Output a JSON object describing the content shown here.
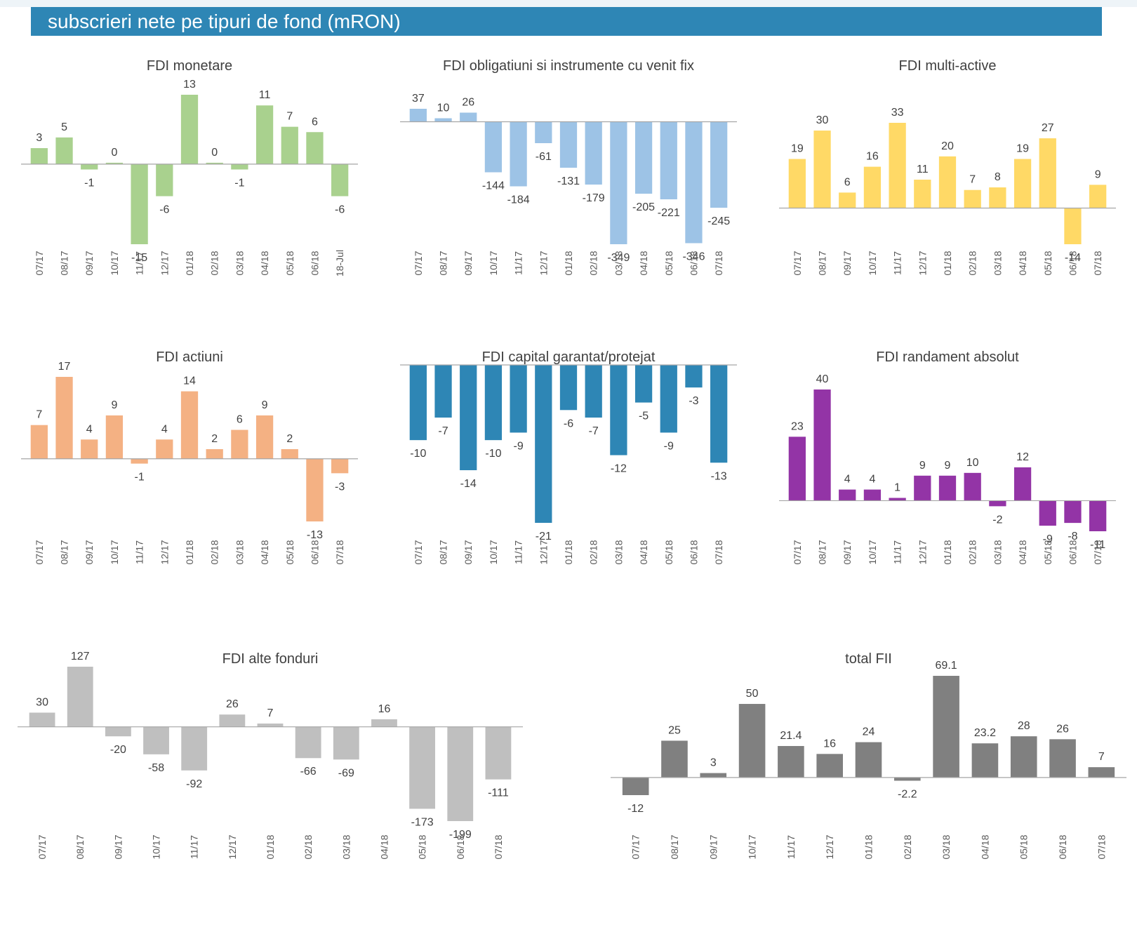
{
  "header": {
    "title": "subscrieri nete pe tipuri de fond (mRON)"
  },
  "chart_data": [
    {
      "type": "bar",
      "title": "FDI monetare",
      "color": "#a9d18e",
      "categories": [
        "07/17",
        "08/17",
        "09/17",
        "10/17",
        "11/17",
        "12/17",
        "01/18",
        "02/18",
        "03/18",
        "04/18",
        "05/18",
        "06/18",
        "18-Jul"
      ],
      "values": [
        3,
        5,
        -1,
        0,
        -15,
        -6,
        13,
        0,
        -1,
        11,
        7,
        6,
        -6
      ],
      "value_labels": [
        "3",
        "5",
        "-1",
        "0",
        "-15",
        "-6",
        "13",
        "0",
        "-1",
        "11",
        "7",
        "6",
        "-6"
      ]
    },
    {
      "type": "bar",
      "title": "FDI obligatiuni si instrumente cu venit fix",
      "color": "#9dc3e6",
      "categories": [
        "07/17",
        "08/17",
        "09/17",
        "10/17",
        "11/17",
        "12/17",
        "01/18",
        "02/18",
        "03/18",
        "04/18",
        "05/18",
        "06/18",
        "07/18"
      ],
      "values": [
        37,
        10,
        26,
        -144,
        -184,
        -61,
        -131,
        -179,
        -349,
        -205,
        -221,
        -346,
        -245
      ],
      "value_labels": [
        "37",
        "10",
        "26",
        "-144",
        "-184",
        "-61",
        "-131",
        "-179",
        "-349",
        "-205",
        "-221",
        "-346",
        "-245"
      ]
    },
    {
      "type": "bar",
      "title": "FDI multi-active",
      "color": "#ffd966",
      "categories": [
        "07/17",
        "08/17",
        "09/17",
        "10/17",
        "11/17",
        "12/17",
        "01/18",
        "02/18",
        "03/18",
        "04/18",
        "05/18",
        "06/18",
        "07/18"
      ],
      "values": [
        19,
        30,
        6,
        16,
        33,
        11,
        20,
        7,
        8,
        19,
        27,
        -14,
        9
      ],
      "value_labels": [
        "19",
        "30",
        "6",
        "16",
        "33",
        "11",
        "20",
        "7",
        "8",
        "19",
        "27",
        "-14",
        "9"
      ]
    },
    {
      "type": "bar",
      "title": "FDI actiuni",
      "color": "#f4b183",
      "categories": [
        "07/17",
        "08/17",
        "09/17",
        "10/17",
        "11/17",
        "12/17",
        "01/18",
        "02/18",
        "03/18",
        "04/18",
        "05/18",
        "06/18",
        "07/18"
      ],
      "values": [
        7,
        17,
        4,
        9,
        -1,
        4,
        14,
        2,
        6,
        9,
        2,
        -13,
        -3
      ],
      "value_labels": [
        "7",
        "17",
        "4",
        "9",
        "-1",
        "4",
        "14",
        "2",
        "6",
        "9",
        "2",
        "-13",
        "-3"
      ]
    },
    {
      "type": "bar",
      "title": "FDI capital garantat/protejat",
      "color": "#2e86b5",
      "categories": [
        "07/17",
        "08/17",
        "09/17",
        "10/17",
        "11/17",
        "12/17",
        "01/18",
        "02/18",
        "03/18",
        "04/18",
        "05/18",
        "06/18",
        "07/18"
      ],
      "values": [
        -10,
        -7,
        -14,
        -10,
        -9,
        -21,
        -6,
        -7,
        -12,
        -5,
        -9,
        -3,
        -13
      ],
      "value_labels": [
        "-10",
        "-7",
        "-14",
        "-10",
        "-9",
        "-21",
        "-6",
        "-7",
        "-12",
        "-5",
        "-9",
        "-3",
        "-13"
      ]
    },
    {
      "type": "bar",
      "title": "FDI randament absolut",
      "color": "#9334a6",
      "categories": [
        "07/17",
        "08/17",
        "09/17",
        "10/17",
        "11/17",
        "12/17",
        "01/18",
        "02/18",
        "03/18",
        "04/18",
        "05/18",
        "06/18",
        "07/18"
      ],
      "values": [
        23,
        40,
        4,
        4,
        1,
        9,
        9,
        10,
        -2,
        12,
        -9,
        -8,
        -11
      ],
      "value_labels": [
        "23",
        "40",
        "4",
        "4",
        "1",
        "9",
        "9",
        "10",
        "-2",
        "12",
        "-9",
        "-8",
        "-11"
      ]
    },
    {
      "type": "bar",
      "title": "FDI alte fonduri",
      "color": "#bfbfbf",
      "categories": [
        "07/17",
        "08/17",
        "09/17",
        "10/17",
        "11/17",
        "12/17",
        "01/18",
        "02/18",
        "03/18",
        "04/18",
        "05/18",
        "06/18",
        "07/18"
      ],
      "values": [
        30,
        127,
        -20,
        -58,
        -92,
        26,
        7,
        -66,
        -69,
        16,
        -173,
        -199,
        -111
      ],
      "value_labels": [
        "30",
        "127",
        "-20",
        "-58",
        "-92",
        "26",
        "7",
        "-66",
        "-69",
        "16",
        "-173",
        "-199",
        "-111"
      ]
    },
    {
      "type": "bar",
      "title": "total FII",
      "color": "#808080",
      "categories": [
        "07/17",
        "08/17",
        "09/17",
        "10/17",
        "11/17",
        "12/17",
        "01/18",
        "02/18",
        "03/18",
        "04/18",
        "05/18",
        "06/18",
        "07/18"
      ],
      "values": [
        -12,
        25,
        3,
        50,
        21.4,
        16,
        24,
        -2.2,
        69.1,
        23.2,
        28,
        26,
        7
      ],
      "value_labels": [
        "-12",
        "25",
        "3",
        "50",
        "21.4",
        "16",
        "24",
        "-2.2",
        "69.1",
        "23.2",
        "28",
        "26",
        "7"
      ]
    }
  ]
}
